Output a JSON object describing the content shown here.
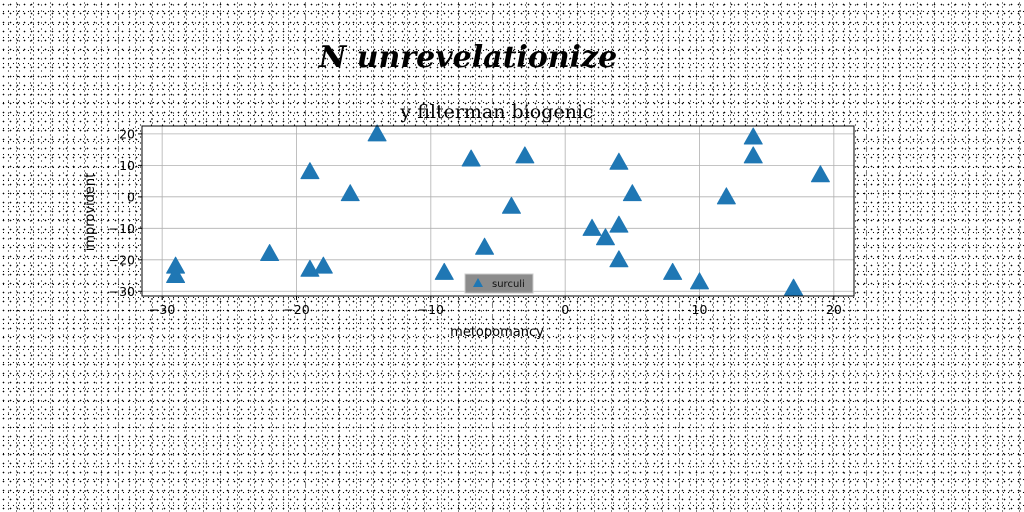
{
  "page": {
    "title": "N unrevelationize"
  },
  "chart_data": {
    "type": "scatter",
    "title": "y filterman biogenic",
    "xlabel": "metopomancy",
    "ylabel": "improvident",
    "xlim": [
      -31.5,
      21.5
    ],
    "ylim": [
      -31.5,
      22.5
    ],
    "xticks": [
      -30,
      -20,
      -10,
      0,
      10,
      20
    ],
    "yticks": [
      -30,
      -20,
      -10,
      0,
      10,
      20
    ],
    "grid": true,
    "legend_position": "lower-center",
    "marker": "triangle",
    "series": [
      {
        "name": "surculi",
        "color": "#1f77b4",
        "points": [
          {
            "x": -29,
            "y": -22
          },
          {
            "x": -29,
            "y": -25
          },
          {
            "x": -22,
            "y": -18
          },
          {
            "x": -19,
            "y": 8
          },
          {
            "x": -19,
            "y": -23
          },
          {
            "x": -18,
            "y": -22
          },
          {
            "x": -16,
            "y": 1
          },
          {
            "x": -14,
            "y": 20
          },
          {
            "x": -9,
            "y": -24
          },
          {
            "x": -7,
            "y": 12
          },
          {
            "x": -6,
            "y": -16
          },
          {
            "x": -4,
            "y": -3
          },
          {
            "x": -3,
            "y": 13
          },
          {
            "x": 2,
            "y": -10
          },
          {
            "x": 3,
            "y": -13
          },
          {
            "x": 4,
            "y": 11
          },
          {
            "x": 4,
            "y": -9
          },
          {
            "x": 4,
            "y": -20
          },
          {
            "x": 5,
            "y": 1
          },
          {
            "x": 8,
            "y": -24
          },
          {
            "x": 10,
            "y": -27
          },
          {
            "x": 12,
            "y": 0
          },
          {
            "x": 14,
            "y": 19
          },
          {
            "x": 14,
            "y": 13
          },
          {
            "x": 17,
            "y": -29
          },
          {
            "x": 19,
            "y": 7
          }
        ]
      }
    ]
  }
}
